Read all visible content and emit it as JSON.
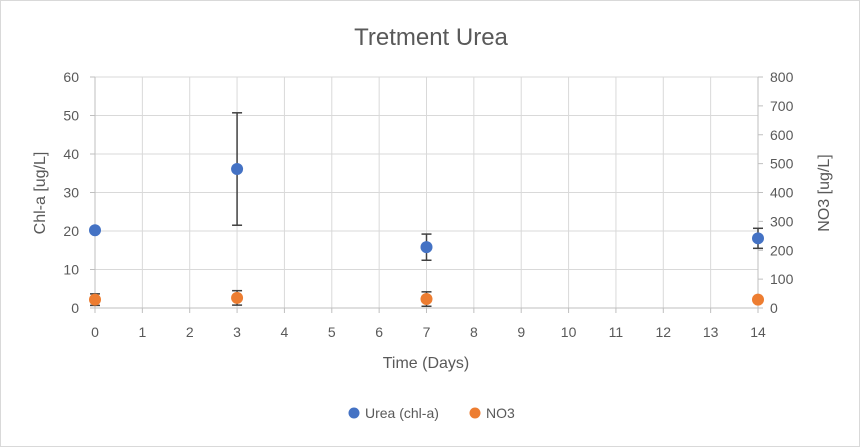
{
  "chart_data": {
    "type": "scatter",
    "title": "Tretment Urea",
    "xlabel": "Time (Days)",
    "ylabel": "Chl-a [ug/L]",
    "y2label": "NO3 [ug/L]",
    "xlim": [
      0,
      14
    ],
    "ylim": [
      0,
      60
    ],
    "y2lim": [
      0,
      800
    ],
    "x_ticks": [
      0,
      1,
      2,
      3,
      4,
      5,
      6,
      7,
      8,
      9,
      10,
      11,
      12,
      13,
      14
    ],
    "y_ticks": [
      0,
      10,
      20,
      30,
      40,
      50,
      60
    ],
    "y2_ticks": [
      0,
      100,
      200,
      300,
      400,
      500,
      600,
      700,
      800
    ],
    "grid": true,
    "legend_position": "bottom",
    "series": [
      {
        "name": "Urea (chl-a)",
        "axis": "left",
        "color": "#4472c4",
        "points": [
          {
            "x": 0,
            "y": 20.2,
            "err": null
          },
          {
            "x": 3,
            "y": 36.1,
            "err": 14.6
          },
          {
            "x": 7,
            "y": 15.8,
            "err": 3.4
          },
          {
            "x": 14,
            "y": 18.1,
            "err": 2.6
          }
        ]
      },
      {
        "name": "NO3",
        "axis": "right",
        "color": "#ed7d31",
        "points": [
          {
            "x": 0,
            "y": 29,
            "err": 20
          },
          {
            "x": 3,
            "y": 35,
            "err": 25
          },
          {
            "x": 7,
            "y": 31,
            "err": 25
          },
          {
            "x": 14,
            "y": 29,
            "err": null
          }
        ]
      }
    ]
  }
}
